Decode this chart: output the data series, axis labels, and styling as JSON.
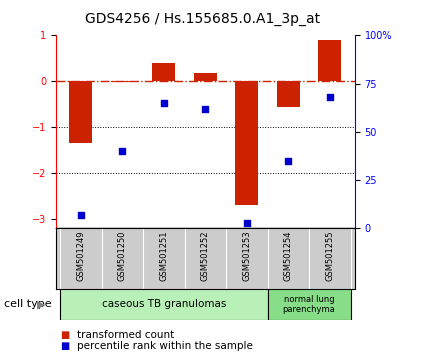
{
  "title": "GDS4256 / Hs.155685.0.A1_3p_at",
  "samples": [
    "GSM501249",
    "GSM501250",
    "GSM501251",
    "GSM501252",
    "GSM501253",
    "GSM501254",
    "GSM501255"
  ],
  "transformed_count": [
    -1.35,
    -0.02,
    0.4,
    0.18,
    -2.7,
    -0.55,
    0.9
  ],
  "percentile_rank": [
    7,
    40,
    65,
    62,
    3,
    35,
    68
  ],
  "ylim_left": [
    -3.2,
    1.0
  ],
  "ylim_right": [
    0,
    100
  ],
  "yticks_left": [
    -3,
    -2,
    -1,
    0,
    1
  ],
  "yticks_right": [
    0,
    25,
    50,
    75,
    100
  ],
  "yticklabels_right": [
    "0",
    "25",
    "50",
    "75",
    "100%"
  ],
  "dotted_lines": [
    -1,
    -2
  ],
  "bar_color": "#cc2200",
  "scatter_color": "#0000cc",
  "group1_label": "caseous TB granulomas",
  "group1_color": "#b8f0b8",
  "group1_darker_color": "#88dd88",
  "group2_label": "normal lung\nparenchyma",
  "group2_color": "#88dd88",
  "sample_bg_color": "#cccccc",
  "cell_type_label": "cell type",
  "legend_bar_label": "transformed count",
  "legend_scatter_label": "percentile rank within the sample",
  "title_fontsize": 10,
  "tick_fontsize": 7,
  "sample_fontsize": 6,
  "legend_fontsize": 7.5,
  "cell_type_fontsize": 8
}
